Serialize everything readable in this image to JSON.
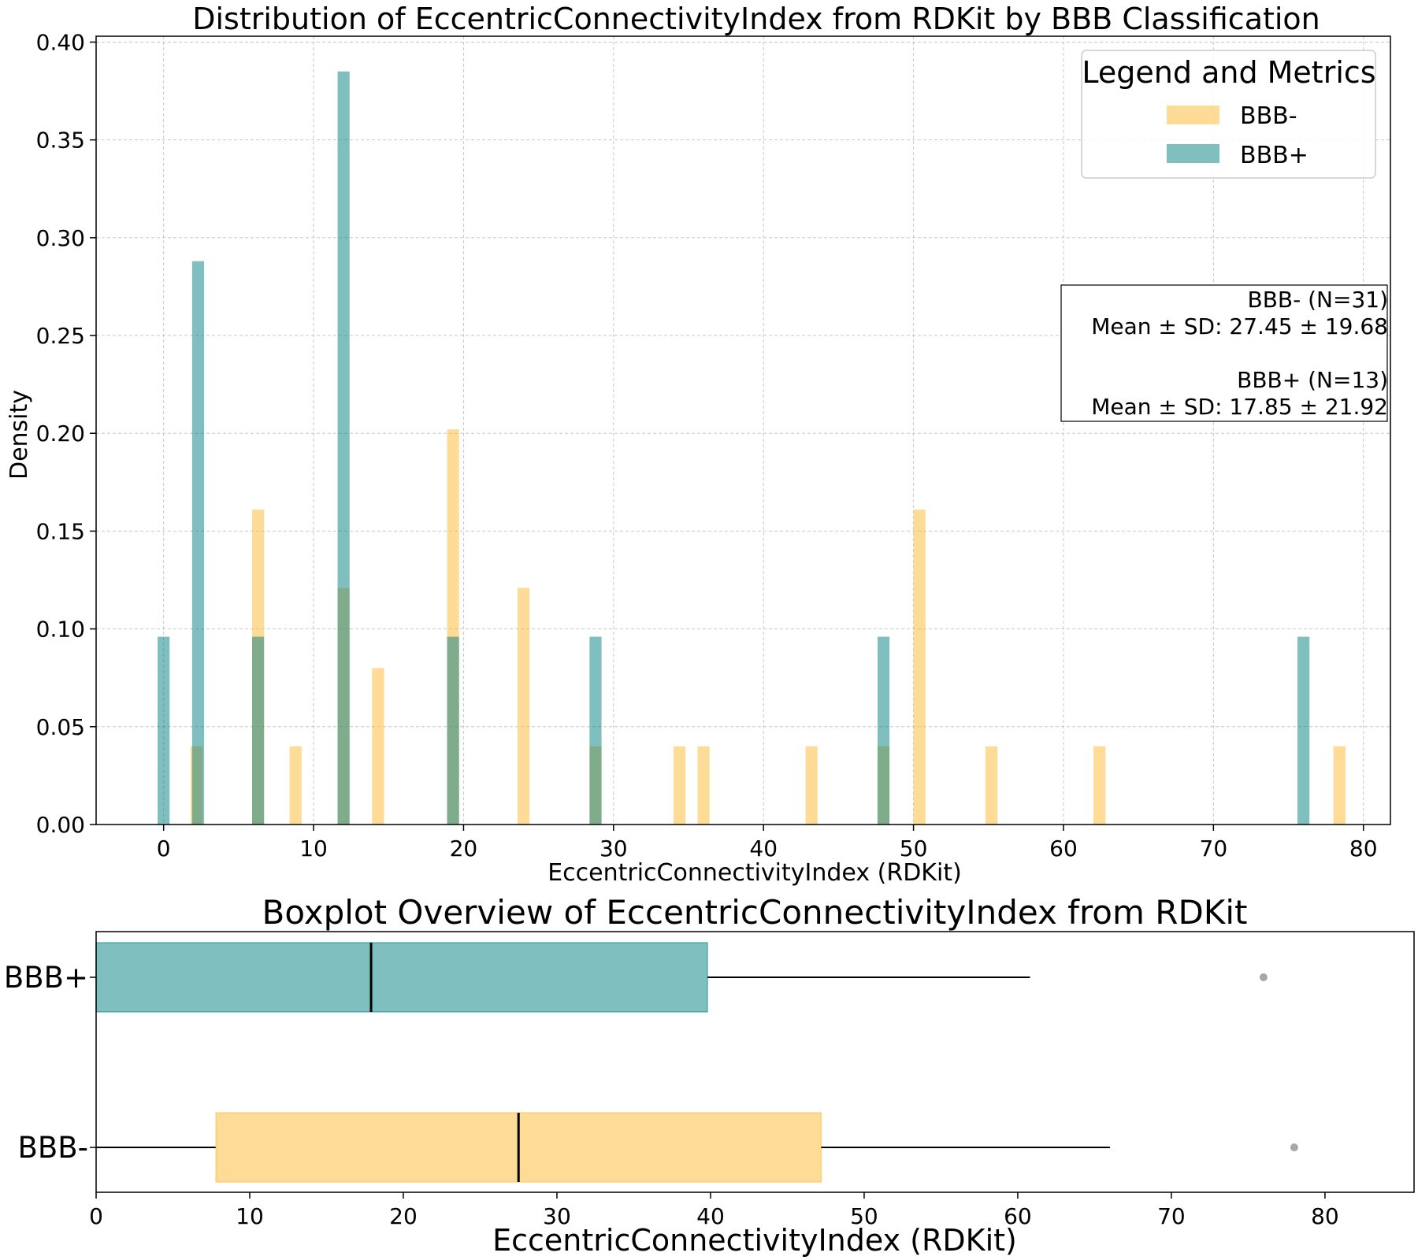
{
  "chart_data": [
    {
      "type": "bar",
      "title": "Distribution of EccentricConnectivityIndex from RDKit by BBB Classification",
      "xlabel": "EccentricConnectivityIndex (RDKit)",
      "ylabel": "Density",
      "xlim": [
        -4.5,
        81.8
      ],
      "ylim": [
        0,
        0.403
      ],
      "xticks": [
        0,
        10,
        20,
        30,
        40,
        50,
        60,
        70,
        80
      ],
      "xtick_labels": [
        "0",
        "10",
        "20",
        "30",
        "40",
        "50",
        "60",
        "70",
        "80"
      ],
      "yticks": [
        0,
        0.05,
        0.1,
        0.15,
        0.2,
        0.25,
        0.3,
        0.35,
        0.4
      ],
      "ytick_labels": [
        "0.00",
        "0.05",
        "0.10",
        "0.15",
        "0.20",
        "0.25",
        "0.30",
        "0.35",
        "0.40"
      ],
      "grid": true,
      "legend": {
        "title": "Legend and Metrics",
        "position": "top-right",
        "entries": [
          "BBB-",
          "BBB+"
        ]
      },
      "series": [
        {
          "name": "BBB-",
          "color": "#FFB732",
          "bars": [
            {
              "x": 2.2,
              "value": 0.04
            },
            {
              "x": 6.3,
              "value": 0.161
            },
            {
              "x": 8.8,
              "value": 0.04
            },
            {
              "x": 12.0,
              "value": 0.121
            },
            {
              "x": 14.3,
              "value": 0.08
            },
            {
              "x": 19.3,
              "value": 0.202
            },
            {
              "x": 24.0,
              "value": 0.121
            },
            {
              "x": 28.8,
              "value": 0.04
            },
            {
              "x": 34.4,
              "value": 0.04
            },
            {
              "x": 36.0,
              "value": 0.04
            },
            {
              "x": 43.2,
              "value": 0.04
            },
            {
              "x": 48.0,
              "value": 0.04
            },
            {
              "x": 50.4,
              "value": 0.161
            },
            {
              "x": 55.2,
              "value": 0.04
            },
            {
              "x": 62.4,
              "value": 0.04
            },
            {
              "x": 78.4,
              "value": 0.04
            }
          ]
        },
        {
          "name": "BBB+",
          "color": "#008080",
          "bars": [
            {
              "x": 0.0,
              "value": 0.096
            },
            {
              "x": 2.3,
              "value": 0.288
            },
            {
              "x": 6.3,
              "value": 0.096
            },
            {
              "x": 12.0,
              "value": 0.385
            },
            {
              "x": 19.3,
              "value": 0.096
            },
            {
              "x": 28.8,
              "value": 0.096
            },
            {
              "x": 48.0,
              "value": 0.096
            },
            {
              "x": 76.0,
              "value": 0.096
            }
          ]
        }
      ],
      "bar_width": 0.8,
      "metrics_box": {
        "lines": [
          "BBB- (N=31)",
          "Mean ± SD: 27.45 ± 19.68",
          "",
          "BBB+ (N=13)",
          "Mean ± SD: 17.85 ± 21.92"
        ]
      }
    },
    {
      "type": "boxplot",
      "title": "Boxplot Overview of EccentricConnectivityIndex from RDKit",
      "xlabel": "EccentricConnectivityIndex (RDKit)",
      "xlim": [
        0,
        85.8
      ],
      "xticks": [
        0,
        10,
        20,
        30,
        40,
        50,
        60,
        70,
        80
      ],
      "xtick_labels": [
        "0",
        "10",
        "20",
        "30",
        "40",
        "50",
        "60",
        "70",
        "80"
      ],
      "grid": false,
      "boxes": [
        {
          "label": "BBB+",
          "color": "#008080",
          "whisker_low": 0,
          "q1": 0,
          "median": 17.9,
          "q3": 39.8,
          "whisker_high": 60.8,
          "outliers": [
            76.0
          ]
        },
        {
          "label": "BBB-",
          "color": "#FFB732",
          "whisker_low": 0,
          "q1": 7.8,
          "median": 27.5,
          "q3": 47.2,
          "whisker_high": 66.0,
          "outliers": [
            78.0
          ]
        }
      ]
    }
  ]
}
